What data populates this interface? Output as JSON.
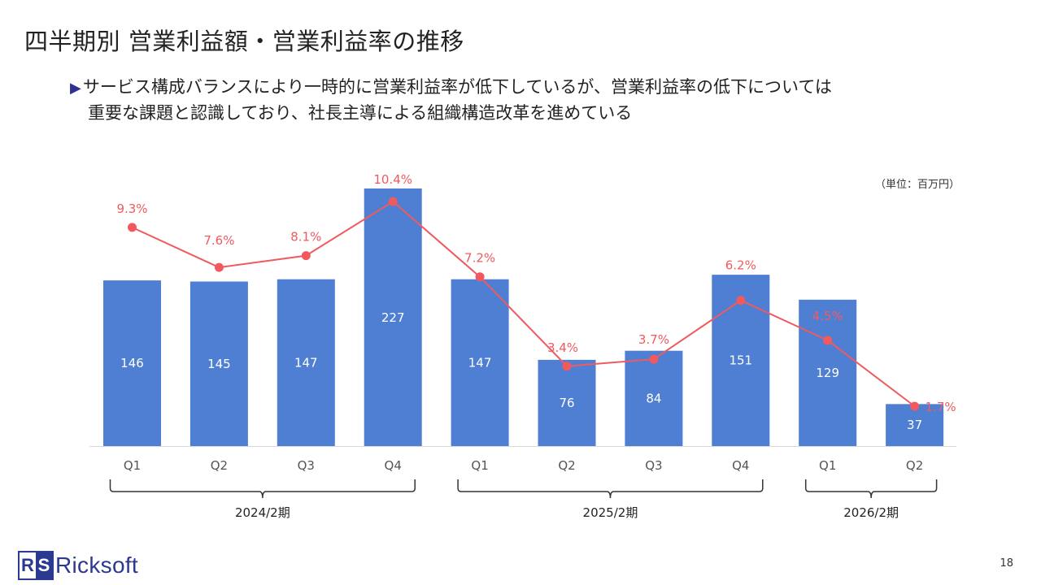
{
  "page": {
    "title": "四半期別 営業利益額・営業利益率の推移",
    "bullet_marker": "▶",
    "bullet_line1": "サービス構成バランスにより一時的に営業利益率が低下しているが、営業利益率の低下については",
    "bullet_line2": "重要な課題と認識しており、社長主導による組織構造改革を進めている",
    "unit": "（単位：百万円）",
    "page_number": "18",
    "logo": {
      "mark_left": "R",
      "mark_right": "S",
      "text": "Ricksoft"
    }
  },
  "colors": {
    "bar": "#4f7fd3",
    "line": "#f05a5f",
    "axis": "#d9d9d9",
    "bracket": "#333333"
  },
  "chart_data": {
    "type": "bar",
    "title": "四半期別 営業利益額・営業利益率の推移",
    "categories": [
      "Q1",
      "Q2",
      "Q3",
      "Q4",
      "Q1",
      "Q2",
      "Q3",
      "Q4",
      "Q1",
      "Q2"
    ],
    "series": [
      {
        "name": "営業利益額",
        "type": "bar",
        "unit": "百万円",
        "values": [
          146,
          145,
          147,
          227,
          147,
          76,
          84,
          151,
          129,
          37
        ]
      },
      {
        "name": "営業利益率",
        "type": "line",
        "values": [
          9.3,
          7.6,
          8.1,
          10.4,
          7.2,
          3.4,
          3.7,
          6.2,
          4.5,
          1.7
        ],
        "labels": [
          "9.3%",
          "7.6%",
          "8.1%",
          "10.4%",
          "7.2%",
          "3.4%",
          "3.7%",
          "6.2%",
          "4.5%",
          "1.7%"
        ]
      }
    ],
    "groups": [
      {
        "label": "2024/2期",
        "start": 0,
        "end": 3
      },
      {
        "label": "2025/2期",
        "start": 4,
        "end": 7
      },
      {
        "label": "2026/2期",
        "start": 8,
        "end": 9
      }
    ],
    "ylim_bar": [
      0,
      230
    ],
    "ylim_rate": [
      0,
      11
    ],
    "unit": "（単位：百万円）"
  }
}
